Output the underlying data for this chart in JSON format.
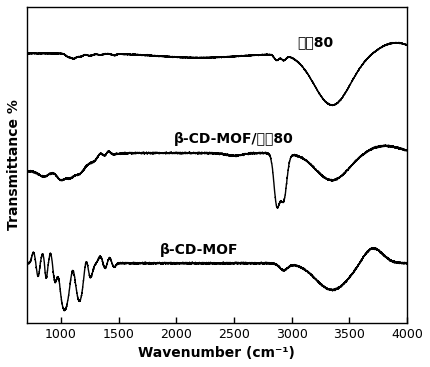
{
  "xlabel": "Wavenumber (cm⁻¹)",
  "ylabel": "Transmittance %",
  "xlim": [
    700,
    4000
  ],
  "xticks": [
    1000,
    1500,
    2000,
    2500,
    3000,
    3500,
    4000
  ],
  "xticklabels": [
    "1000",
    "1500",
    "2000",
    "2500",
    "3000",
    "3500",
    "4000"
  ],
  "line_color": "#000000",
  "label_tween80": "吐渃80",
  "label_cdmof_tween80": "β-CD-MOF/吐渃80",
  "label_cdmof": "β-CD-MOF",
  "background_color": "#ffffff"
}
